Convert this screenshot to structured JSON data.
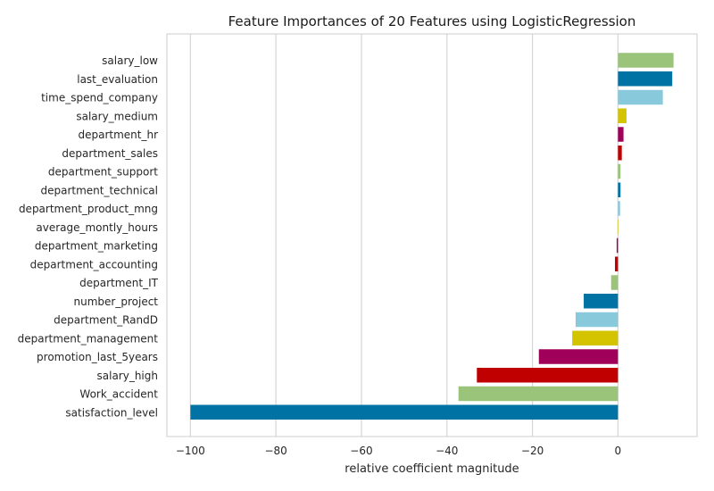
{
  "chart_data": {
    "type": "bar",
    "orientation": "horizontal",
    "title": "Feature Importances of 20 Features using LogisticRegression",
    "xlabel": "relative coefficient magnitude",
    "ylabel": "",
    "xlim": [
      -105.5,
      18.5
    ],
    "xticks": [
      -100,
      -80,
      -60,
      -40,
      -20,
      0
    ],
    "xtick_labels": [
      "−100",
      "−80",
      "−60",
      "−40",
      "−20",
      "0"
    ],
    "grid": "vertical",
    "categories": [
      "salary_low",
      "last_evaluation",
      "time_spend_company",
      "salary_medium",
      "department_hr",
      "department_sales",
      "department_support",
      "department_technical",
      "department_product_mng",
      "average_montly_hours",
      "department_marketing",
      "department_accounting",
      "department_IT",
      "number_project",
      "department_RandD",
      "department_management",
      "promotion_last_5years",
      "salary_high",
      "Work_accident",
      "satisfaction_level"
    ],
    "values": [
      13,
      12.7,
      10.5,
      2,
      1.3,
      0.9,
      0.6,
      0.6,
      0.5,
      0.05,
      -0.3,
      -0.7,
      -1.6,
      -8,
      -9.9,
      -10.7,
      -18.5,
      -33,
      -37.3,
      -100
    ],
    "colors": [
      "#9bc47b",
      "#0072a3",
      "#89c9dc",
      "#d4c400",
      "#a0005a",
      "#c00000",
      "#9bc47b",
      "#0072a3",
      "#89c9dc",
      "#d4c400",
      "#a0005a",
      "#c00000",
      "#9bc47b",
      "#0072a3",
      "#89c9dc",
      "#d4c400",
      "#a0005a",
      "#c00000",
      "#9bc47b",
      "#0072a3"
    ]
  }
}
